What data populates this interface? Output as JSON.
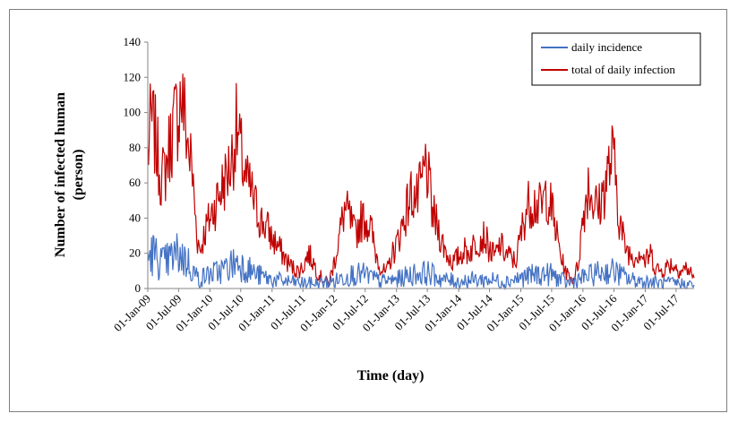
{
  "chart_data": {
    "type": "line",
    "title": "",
    "xlabel": "Time (day)",
    "ylabel": "Number of infected human (person)",
    "ylabel_lines": [
      "Number of infected human",
      "(person)"
    ],
    "ylim": [
      0,
      140
    ],
    "yticks": [
      0,
      20,
      40,
      60,
      80,
      100,
      120,
      140
    ],
    "xlim": [
      "2009-01-01",
      "2017-10-15"
    ],
    "x_tick_dates": [
      "2009-01-01",
      "2009-07-01",
      "2010-01-01",
      "2010-07-01",
      "2011-01-01",
      "2011-07-01",
      "2012-01-01",
      "2012-07-01",
      "2013-01-01",
      "2013-07-01",
      "2014-01-01",
      "2014-07-01",
      "2015-01-01",
      "2015-07-01",
      "2016-01-01",
      "2016-07-01",
      "2017-01-01",
      "2017-07-01"
    ],
    "x_tick_labels": [
      "01-Jan-09",
      "01-Jul-09",
      "01-Jan-10",
      "01-Jul-10",
      "01-Jan-11",
      "01-Jul-11",
      "01-Jan-12",
      "01-Jul-12",
      "01-Jan-13",
      "01-Jul-13",
      "01-Jan-14",
      "01-Jul-14",
      "01-Jan-15",
      "01-Jul-15",
      "01-Jan-16",
      "01-Jul-16",
      "01-Jan-17",
      "01-Jul-17"
    ],
    "grid": false,
    "legend_position": "top-right",
    "series": [
      {
        "name": "total of daily infection",
        "color": "#c00000",
        "values": [
          [
            "2009-01-01",
            75
          ],
          [
            "2009-01-20",
            95
          ],
          [
            "2009-02-10",
            88
          ],
          [
            "2009-03-01",
            75
          ],
          [
            "2009-03-25",
            62
          ],
          [
            "2009-04-15",
            68
          ],
          [
            "2009-05-10",
            82
          ],
          [
            "2009-06-01",
            92
          ],
          [
            "2009-06-25",
            100
          ],
          [
            "2009-07-15",
            110
          ],
          [
            "2009-08-05",
            98
          ],
          [
            "2009-08-25",
            82
          ],
          [
            "2009-09-15",
            70
          ],
          [
            "2009-10-05",
            45
          ],
          [
            "2009-10-20",
            28
          ],
          [
            "2009-11-05",
            22
          ],
          [
            "2009-12-01",
            32
          ],
          [
            "2010-01-01",
            40
          ],
          [
            "2010-02-01",
            48
          ],
          [
            "2010-03-01",
            55
          ],
          [
            "2010-04-01",
            62
          ],
          [
            "2010-05-01",
            70
          ],
          [
            "2010-05-20",
            80
          ],
          [
            "2010-06-05",
            90
          ],
          [
            "2010-06-25",
            80
          ],
          [
            "2010-07-15",
            70
          ],
          [
            "2010-08-05",
            60
          ],
          [
            "2010-09-01",
            55
          ],
          [
            "2010-10-01",
            45
          ],
          [
            "2010-11-01",
            38
          ],
          [
            "2010-12-01",
            35
          ],
          [
            "2011-01-01",
            28
          ],
          [
            "2011-02-01",
            25
          ],
          [
            "2011-03-01",
            20
          ],
          [
            "2011-04-01",
            15
          ],
          [
            "2011-05-01",
            12
          ],
          [
            "2011-06-01",
            10
          ],
          [
            "2011-07-01",
            12
          ],
          [
            "2011-08-01",
            20
          ],
          [
            "2011-09-01",
            15
          ],
          [
            "2011-10-01",
            8
          ],
          [
            "2011-11-01",
            5
          ],
          [
            "2011-12-01",
            3
          ],
          [
            "2012-01-01",
            15
          ],
          [
            "2012-02-01",
            30
          ],
          [
            "2012-03-01",
            45
          ],
          [
            "2012-04-01",
            40
          ],
          [
            "2012-05-01",
            30
          ],
          [
            "2012-06-01",
            38
          ],
          [
            "2012-07-01",
            40
          ],
          [
            "2012-08-01",
            35
          ],
          [
            "2012-09-01",
            20
          ],
          [
            "2012-10-01",
            12
          ],
          [
            "2012-11-01",
            8
          ],
          [
            "2012-12-01",
            18
          ],
          [
            "2013-01-01",
            25
          ],
          [
            "2013-02-01",
            35
          ],
          [
            "2013-03-01",
            45
          ],
          [
            "2013-04-01",
            55
          ],
          [
            "2013-05-01",
            50
          ],
          [
            "2013-06-01",
            60
          ],
          [
            "2013-06-25",
            72
          ],
          [
            "2013-07-15",
            55
          ],
          [
            "2013-08-01",
            42
          ],
          [
            "2013-09-01",
            35
          ],
          [
            "2013-10-01",
            25
          ],
          [
            "2013-11-01",
            18
          ],
          [
            "2013-12-01",
            15
          ],
          [
            "2014-01-01",
            18
          ],
          [
            "2014-02-01",
            22
          ],
          [
            "2014-03-01",
            20
          ],
          [
            "2014-04-01",
            25
          ],
          [
            "2014-05-01",
            28
          ],
          [
            "2014-06-01",
            30
          ],
          [
            "2014-07-01",
            22
          ],
          [
            "2014-08-01",
            18
          ],
          [
            "2014-09-01",
            25
          ],
          [
            "2014-10-01",
            20
          ],
          [
            "2014-11-01",
            18
          ],
          [
            "2014-12-01",
            15
          ],
          [
            "2015-01-01",
            30
          ],
          [
            "2015-02-01",
            45
          ],
          [
            "2015-03-01",
            50
          ],
          [
            "2015-04-01",
            48
          ],
          [
            "2015-05-01",
            45
          ],
          [
            "2015-06-01",
            55
          ],
          [
            "2015-07-01",
            45
          ],
          [
            "2015-08-01",
            30
          ],
          [
            "2015-09-01",
            15
          ],
          [
            "2015-10-01",
            8
          ],
          [
            "2015-11-01",
            5
          ],
          [
            "2015-12-01",
            12
          ],
          [
            "2016-01-01",
            40
          ],
          [
            "2016-02-01",
            60
          ],
          [
            "2016-03-01",
            50
          ],
          [
            "2016-04-01",
            45
          ],
          [
            "2016-05-01",
            55
          ],
          [
            "2016-06-01",
            68
          ],
          [
            "2016-06-25",
            75
          ],
          [
            "2016-07-15",
            60
          ],
          [
            "2016-08-01",
            40
          ],
          [
            "2016-09-01",
            25
          ],
          [
            "2016-10-01",
            20
          ],
          [
            "2016-11-01",
            18
          ],
          [
            "2016-12-01",
            22
          ],
          [
            "2017-01-01",
            15
          ],
          [
            "2017-02-01",
            20
          ],
          [
            "2017-03-01",
            12
          ],
          [
            "2017-04-01",
            10
          ],
          [
            "2017-05-01",
            12
          ],
          [
            "2017-06-01",
            14
          ],
          [
            "2017-07-01",
            12
          ],
          [
            "2017-08-01",
            10
          ],
          [
            "2017-09-01",
            12
          ],
          [
            "2017-10-15",
            6
          ]
        ]
      },
      {
        "name": "daily incidence",
        "color": "#4472c4",
        "values": [
          [
            "2009-01-01",
            18
          ],
          [
            "2009-02-01",
            20
          ],
          [
            "2009-03-01",
            17
          ],
          [
            "2009-04-01",
            14
          ],
          [
            "2009-05-01",
            16
          ],
          [
            "2009-06-01",
            18
          ],
          [
            "2009-07-01",
            20
          ],
          [
            "2009-08-01",
            17
          ],
          [
            "2009-09-01",
            14
          ],
          [
            "2009-10-01",
            9
          ],
          [
            "2009-11-01",
            5
          ],
          [
            "2009-12-01",
            7
          ],
          [
            "2010-01-01",
            8
          ],
          [
            "2010-02-01",
            9
          ],
          [
            "2010-03-01",
            10
          ],
          [
            "2010-04-01",
            11
          ],
          [
            "2010-05-01",
            13
          ],
          [
            "2010-06-01",
            15
          ],
          [
            "2010-07-01",
            14
          ],
          [
            "2010-08-01",
            12
          ],
          [
            "2010-09-01",
            10
          ],
          [
            "2010-10-01",
            8
          ],
          [
            "2010-11-01",
            7
          ],
          [
            "2010-12-01",
            6
          ],
          [
            "2011-01-01",
            5
          ],
          [
            "2011-04-01",
            4
          ],
          [
            "2011-07-01",
            3
          ],
          [
            "2011-10-01",
            3
          ],
          [
            "2012-01-01",
            4
          ],
          [
            "2012-04-01",
            8
          ],
          [
            "2012-07-01",
            8
          ],
          [
            "2012-10-01",
            4
          ],
          [
            "2013-01-01",
            5
          ],
          [
            "2013-04-01",
            8
          ],
          [
            "2013-07-01",
            9
          ],
          [
            "2013-10-01",
            5
          ],
          [
            "2014-01-01",
            4
          ],
          [
            "2014-04-01",
            5
          ],
          [
            "2014-07-01",
            5
          ],
          [
            "2014-10-01",
            4
          ],
          [
            "2015-01-01",
            6
          ],
          [
            "2015-04-01",
            8
          ],
          [
            "2015-07-01",
            8
          ],
          [
            "2015-10-01",
            3
          ],
          [
            "2016-01-01",
            6
          ],
          [
            "2016-04-01",
            9
          ],
          [
            "2016-07-01",
            10
          ],
          [
            "2016-10-01",
            5
          ],
          [
            "2017-01-01",
            4
          ],
          [
            "2017-04-01",
            3
          ],
          [
            "2017-07-01",
            3
          ],
          [
            "2017-10-15",
            2
          ]
        ]
      }
    ]
  }
}
